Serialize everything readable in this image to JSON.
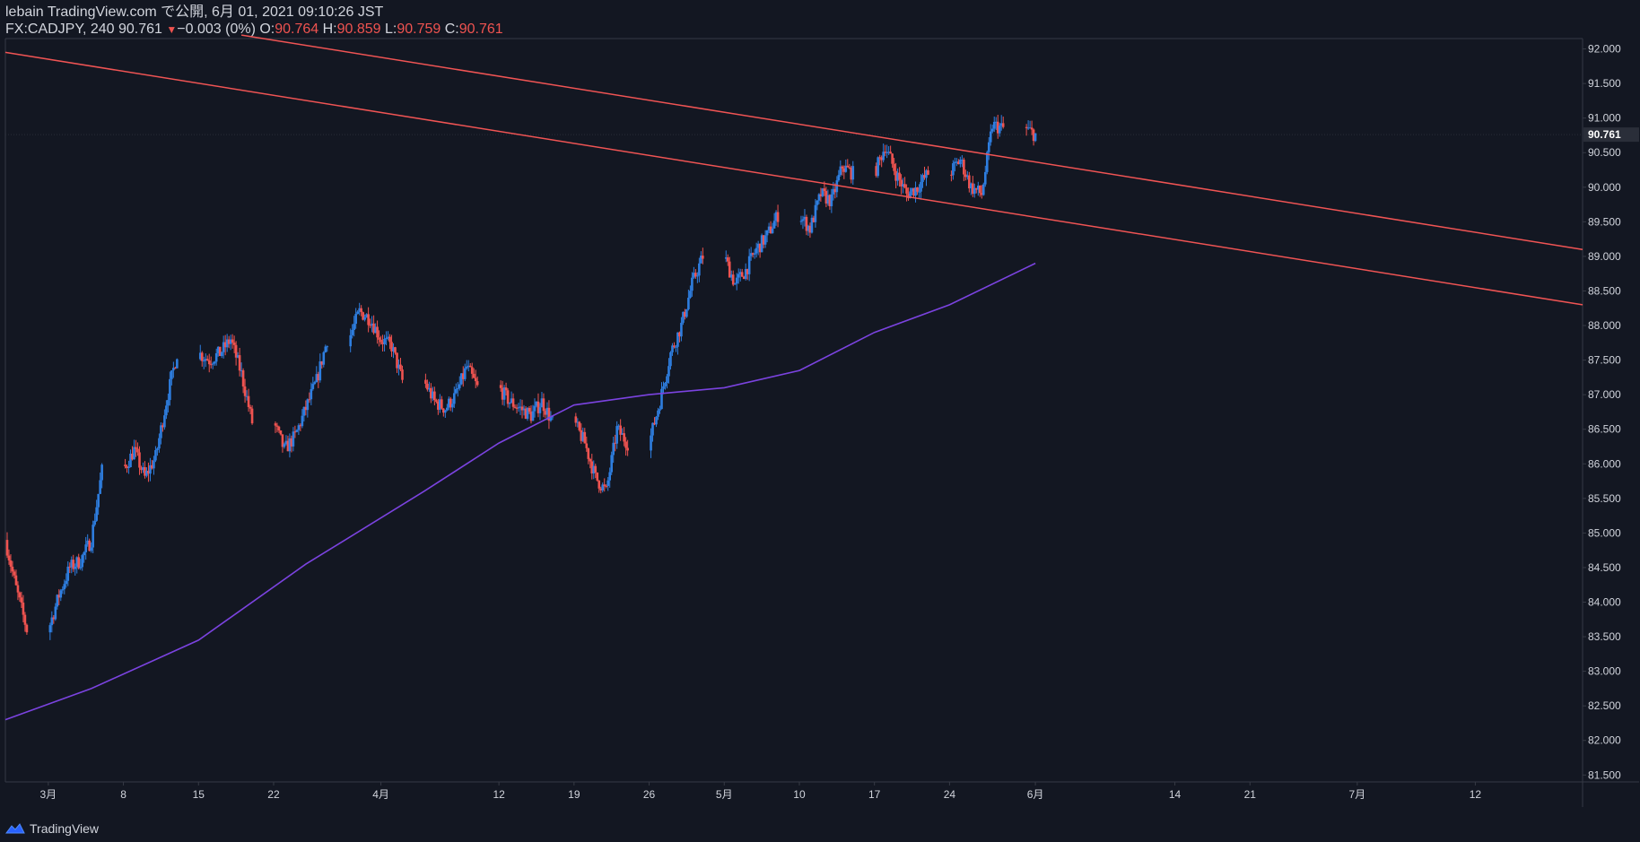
{
  "header": {
    "published_line": "lebain TradingView.com で公開, 6月 01, 2021 09:10:26 JST",
    "symbol": "FX:CADJPY, 240",
    "last": "90.761",
    "change": "−0.003 (0%)",
    "o_label": "O:",
    "o_val": "90.764",
    "h_label": "H:",
    "h_val": "90.859",
    "l_label": "L:",
    "l_val": "90.759",
    "c_label": "C:",
    "c_val": "90.761"
  },
  "footer": {
    "brand": "TradingView",
    "logo_icon": "tradingview-logo-icon"
  },
  "colors": {
    "background": "#131722",
    "up": "#2e7ee0",
    "down": "#ef5350",
    "trendline": "#f05454",
    "ma": "#7b43e0",
    "axis_text": "#d1d4dc",
    "axis_line": "#363a45",
    "price_label_bg": "#2a2e39"
  },
  "chart_data": {
    "type": "candlestick",
    "instrument": "FX:CADJPY",
    "timeframe": "240",
    "y_range": [
      81.4,
      92.15
    ],
    "x_range": [
      "2021-02-25",
      "2021-07-22"
    ],
    "y_ticks": [
      "81.500",
      "82.000",
      "82.500",
      "83.000",
      "83.500",
      "84.000",
      "84.500",
      "85.000",
      "85.500",
      "86.000",
      "86.500",
      "87.000",
      "87.500",
      "88.000",
      "88.500",
      "89.000",
      "89.500",
      "90.000",
      "90.500",
      "91.000",
      "91.500",
      "92.000"
    ],
    "x_ticks": [
      {
        "date": "2021-03-01",
        "label": "3月"
      },
      {
        "date": "2021-03-08",
        "label": "8"
      },
      {
        "date": "2021-03-15",
        "label": "15"
      },
      {
        "date": "2021-03-22",
        "label": "22"
      },
      {
        "date": "2021-04-01",
        "label": "4月"
      },
      {
        "date": "2021-04-12",
        "label": "12"
      },
      {
        "date": "2021-04-19",
        "label": "19"
      },
      {
        "date": "2021-04-26",
        "label": "26"
      },
      {
        "date": "2021-05-03",
        "label": "5月"
      },
      {
        "date": "2021-05-10",
        "label": "10"
      },
      {
        "date": "2021-05-17",
        "label": "17"
      },
      {
        "date": "2021-05-24",
        "label": "24"
      },
      {
        "date": "2021-06-01",
        "label": "6月"
      },
      {
        "date": "2021-06-14",
        "label": "14"
      },
      {
        "date": "2021-06-21",
        "label": "21"
      },
      {
        "date": "2021-07-01",
        "label": "7月"
      },
      {
        "date": "2021-07-12",
        "label": "12"
      }
    ],
    "current_price": "90.761",
    "price_path": [
      [
        "2021-02-25",
        84.9
      ],
      [
        "2021-02-26",
        84.2
      ],
      [
        "2021-03-01",
        83.6
      ],
      [
        "2021-03-02",
        84.1
      ],
      [
        "2021-03-03",
        84.5
      ],
      [
        "2021-03-04",
        84.6
      ],
      [
        "2021-03-05",
        84.9
      ],
      [
        "2021-03-08",
        85.9
      ],
      [
        "2021-03-09",
        86.2
      ],
      [
        "2021-03-10",
        85.8
      ],
      [
        "2021-03-11",
        86.1
      ],
      [
        "2021-03-12",
        86.9
      ],
      [
        "2021-03-15",
        87.6
      ],
      [
        "2021-03-16",
        87.5
      ],
      [
        "2021-03-17",
        87.6
      ],
      [
        "2021-03-18",
        87.8
      ],
      [
        "2021-03-19",
        87.3
      ],
      [
        "2021-03-22",
        86.6
      ],
      [
        "2021-03-23",
        86.2
      ],
      [
        "2021-03-24",
        86.4
      ],
      [
        "2021-03-25",
        86.8
      ],
      [
        "2021-03-26",
        87.2
      ],
      [
        "2021-03-29",
        87.8
      ],
      [
        "2021-03-30",
        88.2
      ],
      [
        "2021-03-31",
        88.1
      ],
      [
        "2021-04-01",
        87.8
      ],
      [
        "2021-04-02",
        87.7
      ],
      [
        "2021-04-05",
        87.2
      ],
      [
        "2021-04-06",
        86.9
      ],
      [
        "2021-04-07",
        86.8
      ],
      [
        "2021-04-08",
        87.0
      ],
      [
        "2021-04-09",
        87.4
      ],
      [
        "2021-04-12",
        87.1
      ],
      [
        "2021-04-13",
        86.9
      ],
      [
        "2021-04-14",
        86.8
      ],
      [
        "2021-04-15",
        86.7
      ],
      [
        "2021-04-16",
        86.9
      ],
      [
        "2021-04-19",
        86.6
      ],
      [
        "2021-04-20",
        86.3
      ],
      [
        "2021-04-21",
        85.8
      ],
      [
        "2021-04-22",
        85.6
      ],
      [
        "2021-04-23",
        86.5
      ],
      [
        "2021-04-26",
        86.3
      ],
      [
        "2021-04-27",
        86.9
      ],
      [
        "2021-04-28",
        87.6
      ],
      [
        "2021-04-29",
        88.0
      ],
      [
        "2021-04-30",
        88.6
      ],
      [
        "2021-05-03",
        89.0
      ],
      [
        "2021-05-04",
        88.6
      ],
      [
        "2021-05-05",
        88.8
      ],
      [
        "2021-05-06",
        89.1
      ],
      [
        "2021-05-07",
        89.3
      ],
      [
        "2021-05-10",
        89.6
      ],
      [
        "2021-05-11",
        89.4
      ],
      [
        "2021-05-12",
        89.9
      ],
      [
        "2021-05-13",
        89.8
      ],
      [
        "2021-05-14",
        90.3
      ],
      [
        "2021-05-17",
        90.2
      ],
      [
        "2021-05-18",
        90.6
      ],
      [
        "2021-05-19",
        90.2
      ],
      [
        "2021-05-20",
        89.9
      ],
      [
        "2021-05-21",
        90.0
      ],
      [
        "2021-05-24",
        90.2
      ],
      [
        "2021-05-25",
        90.4
      ],
      [
        "2021-05-26",
        90.0
      ],
      [
        "2021-05-27",
        89.9
      ],
      [
        "2021-05-28",
        90.9
      ],
      [
        "2021-05-31",
        90.85
      ],
      [
        "2021-06-01",
        90.761
      ]
    ],
    "series": [
      {
        "name": "",
        "type": "moving-average",
        "points": [
          [
            "2021-02-25",
            82.3
          ],
          [
            "2021-03-05",
            82.75
          ],
          [
            "2021-03-15",
            83.45
          ],
          [
            "2021-03-25",
            84.55
          ],
          [
            "2021-04-05",
            85.6
          ],
          [
            "2021-04-12",
            86.3
          ],
          [
            "2021-04-19",
            86.85
          ],
          [
            "2021-04-26",
            87.0
          ],
          [
            "2021-05-03",
            87.1
          ],
          [
            "2021-05-10",
            87.35
          ],
          [
            "2021-05-17",
            87.9
          ],
          [
            "2021-05-24",
            88.3
          ],
          [
            "2021-06-01",
            88.9
          ]
        ]
      },
      {
        "name": "",
        "type": "trendline",
        "points": [
          [
            "2021-03-19",
            92.2
          ],
          [
            "2021-07-22",
            89.1
          ]
        ]
      },
      {
        "name": "",
        "type": "trendline",
        "points": [
          [
            "2021-02-25",
            91.95
          ],
          [
            "2021-07-22",
            88.3
          ]
        ]
      }
    ]
  }
}
